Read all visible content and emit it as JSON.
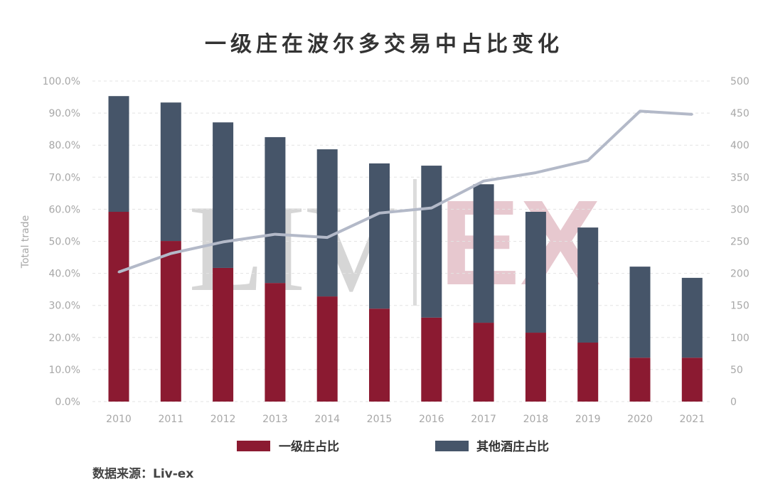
{
  "chart_data": {
    "type": "bar",
    "title": "一级庄在波尔多交易中占比变化",
    "ylabel": "Total trade",
    "xlabel": "",
    "categories": [
      "2010",
      "2011",
      "2012",
      "2013",
      "2014",
      "2015",
      "2016",
      "2017",
      "2018",
      "2019",
      "2020",
      "2021"
    ],
    "series": [
      {
        "name": "一级庄占比",
        "kind": "stacked-bar",
        "axis": "left",
        "color": "#8b1a31",
        "values": [
          59.2,
          50.1,
          41.7,
          37.0,
          32.8,
          29.0,
          26.2,
          24.6,
          21.5,
          18.4,
          13.7,
          13.7
        ]
      },
      {
        "name": "其他酒庄占比",
        "kind": "stacked-bar",
        "axis": "left",
        "color": "#465569",
        "values": [
          36.1,
          43.2,
          45.4,
          45.5,
          45.9,
          45.3,
          47.4,
          43.2,
          37.7,
          35.9,
          28.4,
          24.9
        ]
      },
      {
        "name": "Total trade",
        "kind": "line",
        "axis": "right",
        "color": "#b3b9c8",
        "values": [
          202,
          231,
          249,
          261,
          256,
          294,
          302,
          344,
          357,
          376,
          453,
          448
        ]
      }
    ],
    "ylim": [
      0,
      100
    ],
    "y2lim": [
      0,
      500
    ],
    "yticks": [
      "0.0%",
      "10.0%",
      "20.0%",
      "30.0%",
      "40.0%",
      "50.0%",
      "60.0%",
      "70.0%",
      "80.0%",
      "90.0%",
      "100.0%"
    ],
    "y2ticks": [
      "0",
      "50",
      "100",
      "150",
      "200",
      "250",
      "300",
      "350",
      "400",
      "450",
      "500"
    ],
    "grid": true,
    "legend_position": "bottom",
    "source": "数据来源：Liv-ex",
    "watermark": "LIV EX"
  }
}
